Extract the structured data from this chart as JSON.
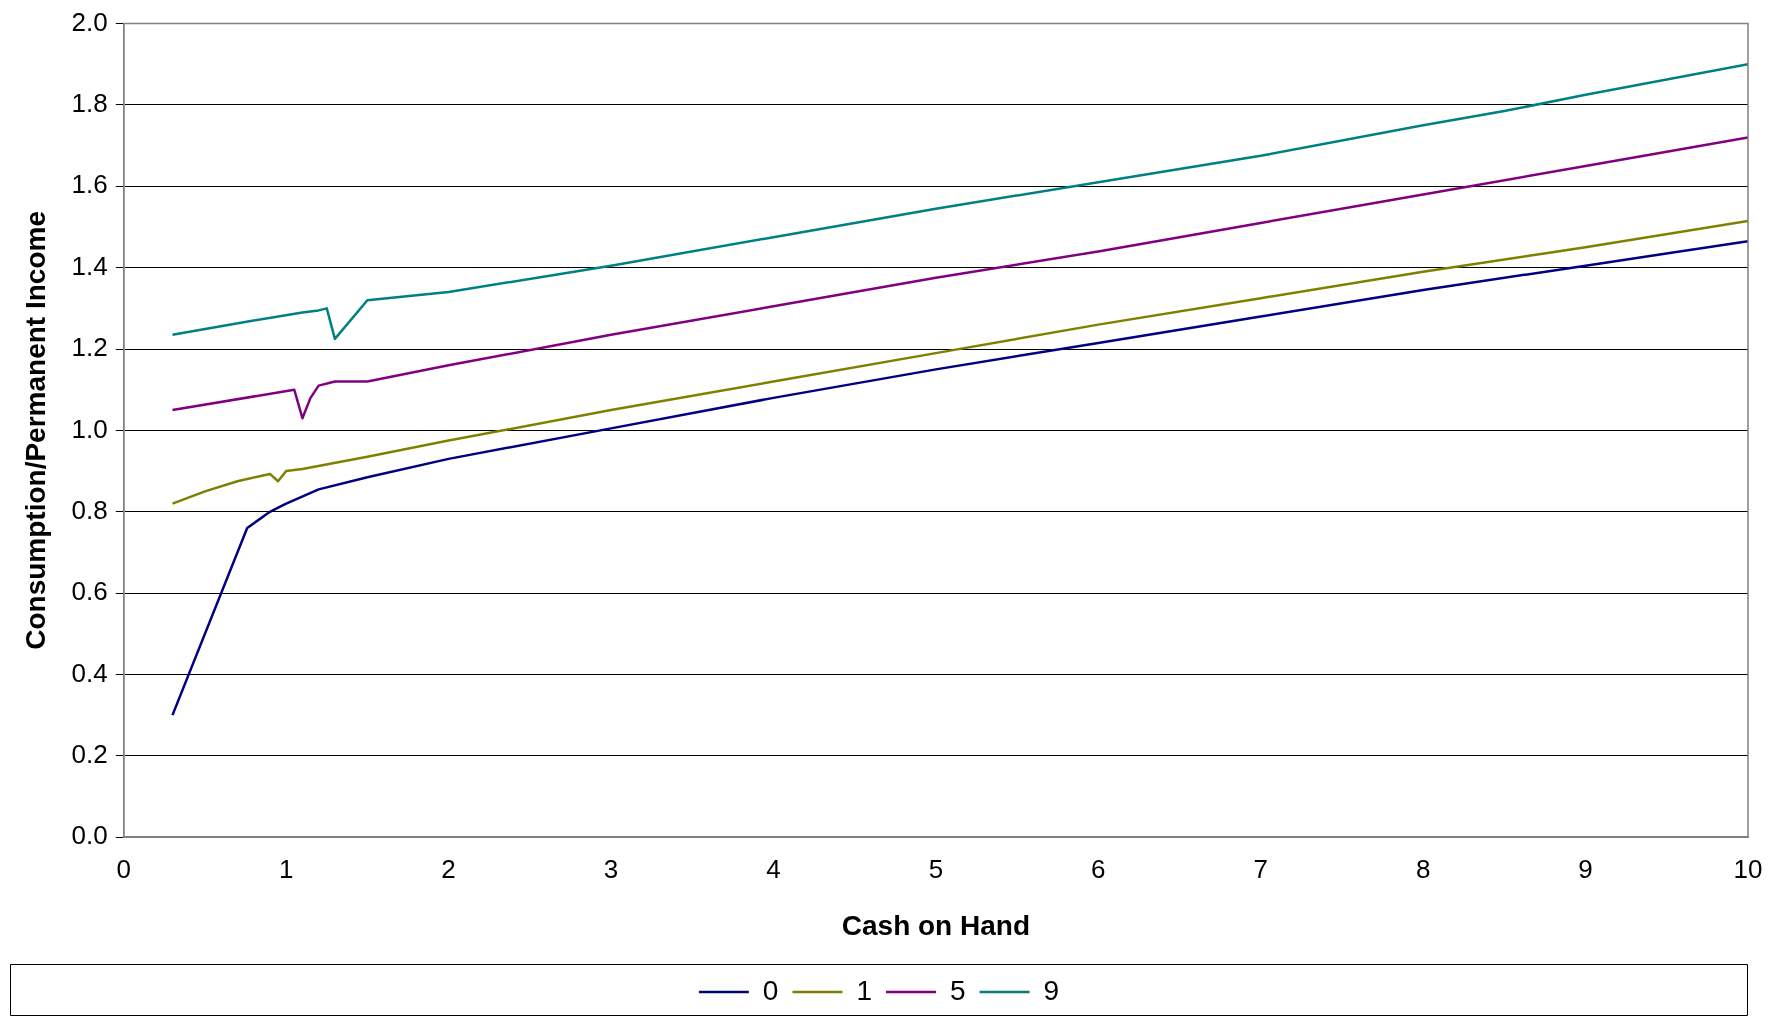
{
  "chart_data": {
    "type": "line",
    "xlabel": "Cash on Hand",
    "ylabel": "Consumption/Permanent Income",
    "xlim": [
      0,
      10
    ],
    "xticks": [
      0,
      1,
      2,
      3,
      4,
      5,
      6,
      7,
      8,
      9,
      10
    ],
    "ylim": [
      0,
      2.0
    ],
    "yticks": [
      {
        "value": 0,
        "label": "0.0"
      },
      {
        "value": 0.2,
        "label": "0.2"
      },
      {
        "value": 0.4,
        "label": "0.4"
      },
      {
        "value": 0.6,
        "label": "0.6"
      },
      {
        "value": 0.8,
        "label": "0.8"
      },
      {
        "value": 1.0,
        "label": "1.0"
      },
      {
        "value": 1.2,
        "label": "1.2"
      },
      {
        "value": 1.4,
        "label": "1.4"
      },
      {
        "value": 1.6,
        "label": "1.6"
      },
      {
        "value": 1.8,
        "label": "1.8"
      },
      {
        "value": 2.0,
        "label": "2.0"
      }
    ],
    "grid": "y",
    "legend": "bottom",
    "marker": "none",
    "line_style": "solid",
    "series": [
      {
        "name": "0",
        "color": "#000080",
        "x": [
          0.3,
          0.76,
          0.9,
          1.0,
          1.2,
          1.5,
          2,
          3,
          4,
          5,
          6,
          7,
          8,
          9,
          10
        ],
        "values": [
          0.3,
          0.76,
          0.8,
          0.82,
          0.855,
          0.885,
          0.93,
          1.005,
          1.08,
          1.15,
          1.215,
          1.28,
          1.345,
          1.405,
          1.465
        ]
      },
      {
        "name": "1",
        "color": "#808000",
        "x": [
          0.3,
          0.5,
          0.7,
          0.9,
          0.95,
          1.0,
          1.1,
          1.5,
          2,
          3,
          4,
          5,
          6,
          7,
          8,
          9,
          10
        ],
        "values": [
          0.82,
          0.85,
          0.875,
          0.893,
          0.875,
          0.9,
          0.905,
          0.935,
          0.975,
          1.05,
          1.12,
          1.19,
          1.26,
          1.325,
          1.39,
          1.45,
          1.515
        ]
      },
      {
        "name": "5",
        "color": "#800080",
        "x": [
          0.3,
          1.05,
          1.1,
          1.15,
          1.2,
          1.3,
          1.5,
          2,
          3,
          4,
          5,
          6,
          7,
          8,
          9,
          10
        ],
        "values": [
          1.05,
          1.1,
          1.03,
          1.08,
          1.11,
          1.12,
          1.12,
          1.16,
          1.235,
          1.305,
          1.375,
          1.44,
          1.51,
          1.58,
          1.65,
          1.72
        ]
      },
      {
        "name": "9",
        "color": "#008080",
        "x": [
          0.3,
          0.8,
          1.1,
          1.2,
          1.25,
          1.3,
          1.5,
          2,
          3,
          4,
          5,
          6,
          7,
          8,
          8.5,
          9,
          10
        ],
        "values": [
          1.235,
          1.27,
          1.29,
          1.295,
          1.3,
          1.225,
          1.32,
          1.34,
          1.405,
          1.475,
          1.545,
          1.61,
          1.675,
          1.75,
          1.785,
          1.825,
          1.9
        ]
      }
    ]
  }
}
